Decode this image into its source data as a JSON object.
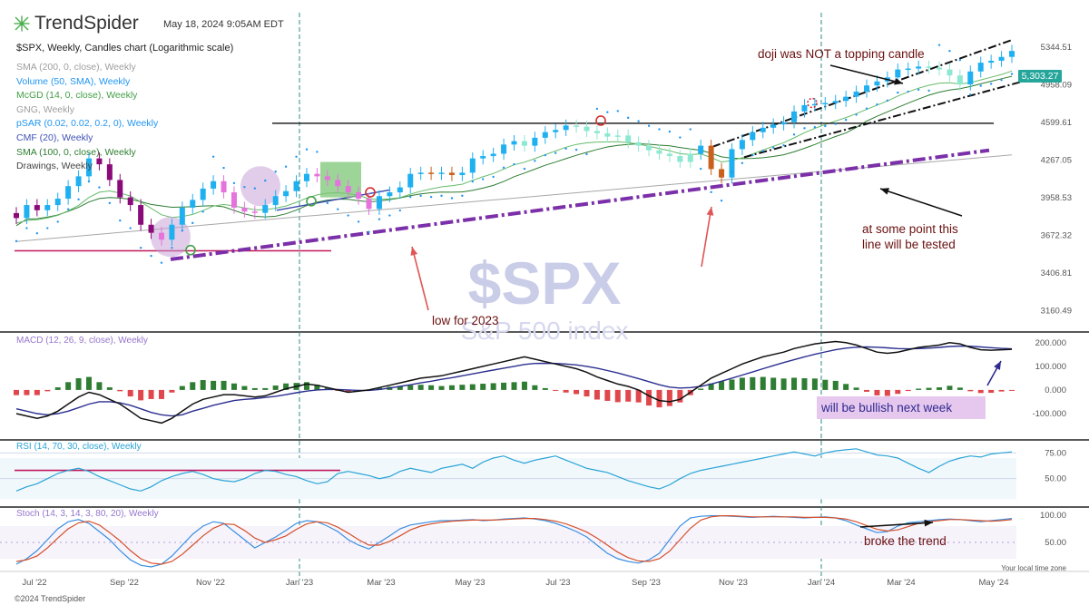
{
  "header": {
    "brand": "TrendSpider",
    "timestamp": "May 18, 2024 9:05AM EDT",
    "chart_title": "$SPX, Weekly, Candles chart (Logarithmic scale)"
  },
  "indicators": [
    {
      "label": "SMA (200, 0, close), Weekly",
      "color": "#9e9e9e"
    },
    {
      "label": "Volume (50, SMA), Weekly",
      "color": "#2196f3"
    },
    {
      "label": "McGD (14, 0, close), Weekly",
      "color": "#43a047"
    },
    {
      "label": "GNG, Weekly",
      "color": "#9e9e9e"
    },
    {
      "label": "pSAR (0.02, 0.02, 0.2, 0), Weekly",
      "color": "#2196f3"
    },
    {
      "label": "CMF (20), Weekly",
      "color": "#3f51b5"
    },
    {
      "label": "SMA (100, 0, close), Weekly",
      "color": "#2e7d32"
    },
    {
      "label": "Drawings, Weekly",
      "color": "#444444"
    }
  ],
  "watermark": {
    "symbol": "$SPX",
    "name": "S&P 500 index"
  },
  "last_price": "5,303.27",
  "footer": {
    "copyright": "©2024 TrendSpider",
    "timezone_note": "Your local time zone"
  },
  "colors": {
    "bull_uptrend": "#1eb0f0",
    "bull_weak": "#8ce8d0",
    "bear_downtrend": "#8b0a7a",
    "bear_weak": "#e573dc",
    "orange": "#c9601e",
    "pattern_box": "#7cc576",
    "trendline_purple": "#7b2fa8",
    "macd_line": "#111111",
    "macd_signal": "#2b2f8f",
    "hist_pos": "#2e7d32",
    "hist_neg": "#e0474c",
    "rsi_line": "#29a3d6",
    "stoch_k": "#3b8fe0",
    "stoch_d": "#d5502c",
    "annotation_text": "#6b1010"
  },
  "chart_data": {
    "type": "candlestick",
    "symbol": "$SPX",
    "scale": "log",
    "ylim": [
      3050,
      5460
    ],
    "x_ticks": [
      "Jul '22",
      "Sep '22",
      "Nov '22",
      "Jan '23",
      "Mar '23",
      "May '23",
      "Jul '23",
      "Sep '23",
      "Nov '23",
      "Jan '24",
      "Mar '24",
      "May '24"
    ],
    "y_ticks": [
      "5344.51",
      "4958.09",
      "4599.61",
      "4267.05",
      "3958.53",
      "3672.32",
      "3406.81",
      "3160.49"
    ],
    "closes": [
      3800,
      3900,
      3860,
      3900,
      3950,
      4050,
      4130,
      4280,
      4230,
      4100,
      3960,
      3900,
      3750,
      3690,
      3640,
      3750,
      3880,
      3940,
      4030,
      4090,
      4000,
      3880,
      3850,
      3840,
      3900,
      3970,
      4010,
      4090,
      4150,
      4130,
      4100,
      4050,
      4000,
      3950,
      3870,
      3970,
      4000,
      4040,
      4150,
      4160,
      4150,
      4160,
      4140,
      4160,
      4280,
      4300,
      4320,
      4400,
      4430,
      4390,
      4460,
      4510,
      4530,
      4570,
      4560,
      4520,
      4500,
      4470,
      4480,
      4420,
      4390,
      4350,
      4320,
      4300,
      4250,
      4320,
      4390,
      4190,
      4120,
      4360,
      4440,
      4510,
      4550,
      4580,
      4600,
      4700,
      4760,
      4770,
      4780,
      4800,
      4840,
      4890,
      4950,
      4990,
      5030,
      5110,
      5120,
      5140,
      5130,
      5110,
      5050,
      4960,
      5090,
      5180,
      5200,
      5240,
      5303
    ],
    "annotations": [
      "doji was NOT a topping candle",
      "at some point this line will be tested",
      "low for 2023",
      "will be bullish next week",
      "broke the trend"
    ],
    "panels": {
      "macd": {
        "label": "MACD (12, 26, 9, close), Weekly",
        "ylim": [
          -200,
          230
        ],
        "y_ticks": [
          "200.000",
          "100.000",
          "0.000",
          "-100.000"
        ],
        "line": [
          -100,
          -110,
          -120,
          -110,
          -90,
          -60,
          -30,
          -10,
          -20,
          -40,
          -60,
          -90,
          -120,
          -130,
          -140,
          -120,
          -90,
          -60,
          -40,
          -30,
          -20,
          -20,
          -25,
          -30,
          -25,
          -10,
          5,
          15,
          25,
          20,
          10,
          0,
          -10,
          -5,
          0,
          10,
          20,
          30,
          40,
          50,
          55,
          60,
          70,
          80,
          90,
          100,
          110,
          120,
          130,
          140,
          130,
          120,
          110,
          100,
          90,
          75,
          55,
          40,
          25,
          15,
          0,
          -25,
          -45,
          -50,
          -40,
          -10,
          20,
          50,
          70,
          90,
          110,
          125,
          140,
          150,
          160,
          175,
          185,
          195,
          200,
          205,
          200,
          190,
          175,
          160,
          155,
          160,
          170,
          180,
          185,
          190,
          200,
          195,
          180,
          170,
          168,
          170,
          172
        ],
        "signal": [
          -80,
          -90,
          -100,
          -105,
          -100,
          -90,
          -75,
          -60,
          -50,
          -50,
          -55,
          -65,
          -80,
          -95,
          -105,
          -110,
          -105,
          -90,
          -78,
          -65,
          -55,
          -45,
          -40,
          -37,
          -32,
          -27,
          -20,
          -12,
          -5,
          0,
          2,
          2,
          0,
          -2,
          -2,
          2,
          8,
          15,
          22,
          30,
          37,
          45,
          52,
          60,
          68,
          76,
          84,
          92,
          100,
          108,
          112,
          113,
          112,
          110,
          106,
          100,
          92,
          82,
          72,
          60,
          48,
          35,
          22,
          12,
          8,
          10,
          15,
          25,
          37,
          50,
          63,
          76,
          90,
          103,
          116,
          128,
          140,
          151,
          161,
          170,
          177,
          181,
          182,
          181,
          178,
          175,
          174,
          175,
          177,
          180,
          184,
          186,
          185,
          182,
          179,
          176,
          174
        ]
      },
      "rsi": {
        "label": "RSI (14, 70, 30, close), Weekly",
        "ylim": [
          25,
          85
        ],
        "y_ticks": [
          "75.00",
          "50.00"
        ],
        "values": [
          38,
          42,
          45,
          50,
          55,
          58,
          60,
          57,
          52,
          48,
          44,
          40,
          38,
          42,
          48,
          52,
          55,
          57,
          54,
          50,
          48,
          47,
          50,
          55,
          58,
          57,
          54,
          52,
          48,
          45,
          47,
          55,
          57,
          55,
          53,
          50,
          52,
          57,
          60,
          58,
          56,
          60,
          62,
          64,
          60,
          66,
          70,
          72,
          68,
          65,
          68,
          70,
          72,
          68,
          64,
          60,
          58,
          56,
          52,
          48,
          45,
          42,
          40,
          44,
          50,
          55,
          58,
          60,
          62,
          64,
          66,
          68,
          70,
          72,
          74,
          76,
          74,
          72,
          75,
          77,
          78,
          79,
          76,
          73,
          72,
          70,
          65,
          60,
          56,
          62,
          67,
          70,
          72,
          71,
          74,
          75,
          76
        ]
      },
      "stoch": {
        "label": "Stoch (14, 3, 14, 3, 80, 20), Weekly",
        "ylim": [
          0,
          110
        ],
        "y_ticks": [
          "100.00",
          "50.00"
        ],
        "k": [
          10,
          20,
          35,
          55,
          75,
          88,
          92,
          85,
          70,
          55,
          35,
          18,
          8,
          5,
          10,
          25,
          45,
          65,
          80,
          88,
          85,
          70,
          55,
          40,
          50,
          60,
          72,
          85,
          90,
          88,
          80,
          70,
          55,
          45,
          38,
          50,
          62,
          75,
          82,
          85,
          88,
          90,
          90,
          91,
          92,
          90,
          91,
          93,
          94,
          95,
          93,
          90,
          85,
          78,
          70,
          60,
          45,
          30,
          20,
          15,
          12,
          18,
          30,
          55,
          80,
          95,
          98,
          99,
          99,
          98,
          97,
          96,
          97,
          98,
          97,
          96,
          95,
          96,
          97,
          95,
          90,
          82,
          75,
          68,
          70,
          80,
          86,
          88,
          90,
          92,
          93,
          92,
          90,
          88,
          90,
          92,
          94
        ],
        "d": [
          15,
          18,
          25,
          40,
          58,
          75,
          86,
          89,
          82,
          68,
          53,
          35,
          20,
          12,
          10,
          15,
          28,
          45,
          62,
          76,
          84,
          83,
          72,
          58,
          50,
          55,
          62,
          74,
          84,
          88,
          86,
          78,
          67,
          55,
          45,
          45,
          52,
          62,
          73,
          80,
          84,
          87,
          89,
          90,
          91,
          91,
          91,
          92,
          93,
          94,
          94,
          92,
          89,
          84,
          77,
          69,
          58,
          45,
          32,
          22,
          16,
          15,
          20,
          34,
          55,
          76,
          91,
          97,
          99,
          99,
          98,
          97,
          97,
          97,
          97,
          97,
          96,
          96,
          96,
          95,
          93,
          88,
          81,
          74,
          71,
          73,
          79,
          85,
          88,
          90,
          92,
          92,
          91,
          90,
          89,
          90,
          92
        ]
      }
    }
  }
}
